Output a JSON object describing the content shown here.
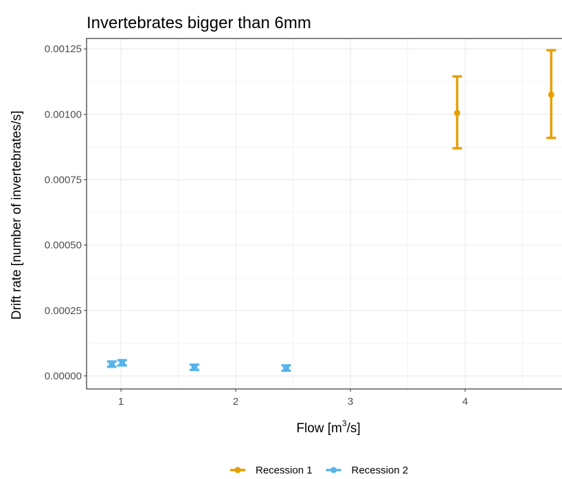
{
  "chart_data": {
    "type": "scatter",
    "title": "Invertebrates bigger than 6mm",
    "xlabel": {
      "pre": "Flow [m",
      "sup": "3",
      "post": "/s]"
    },
    "ylabel": "Drift rate [number of invertebrates/s]",
    "xlim": [
      0.7,
      4.85
    ],
    "ylim": [
      -5e-05,
      0.00129
    ],
    "x_ticks": [
      1,
      2,
      3,
      4
    ],
    "x_tick_labels": [
      "1",
      "2",
      "3",
      "4"
    ],
    "y_ticks": [
      0,
      0.00025,
      0.0005,
      0.00075,
      0.001,
      0.00125
    ],
    "y_tick_labels": [
      "0.00000",
      "0.00025",
      "0.00050",
      "0.00075",
      "0.00100",
      "0.00125"
    ],
    "grid": true,
    "legend_position": "bottom",
    "series": [
      {
        "name": "Recession 1",
        "color": "#E69F00",
        "points": [
          {
            "x": 3.93,
            "y": 0.001005,
            "ymin": 0.00087,
            "ymax": 0.001145
          },
          {
            "x": 4.75,
            "y": 0.001075,
            "ymin": 0.00091,
            "ymax": 0.001245
          }
        ]
      },
      {
        "name": "Recession 2",
        "color": "#56B4E9",
        "points": [
          {
            "x": 0.92,
            "y": 4.5e-05,
            "ymin": 3.5e-05,
            "ymax": 5.5e-05
          },
          {
            "x": 1.01,
            "y": 5e-05,
            "ymin": 4e-05,
            "ymax": 6e-05
          },
          {
            "x": 1.64,
            "y": 3.3e-05,
            "ymin": 2.3e-05,
            "ymax": 4.3e-05
          },
          {
            "x": 2.44,
            "y": 3e-05,
            "ymin": 2e-05,
            "ymax": 4e-05
          }
        ]
      }
    ]
  }
}
